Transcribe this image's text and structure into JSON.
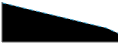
{
  "chart_data": {
    "type": "line",
    "x": [
      0,
      1,
      2,
      3,
      4,
      5,
      6,
      7,
      8,
      9,
      10
    ],
    "values": [
      98,
      91,
      84,
      77,
      70,
      63,
      56,
      49,
      42,
      35,
      22
    ],
    "color": "#3FA8D5",
    "line_style": "dashed",
    "xlim": [
      0,
      10
    ],
    "ylim": [
      0,
      100
    ],
    "grid": false,
    "tick_labels": false
  }
}
